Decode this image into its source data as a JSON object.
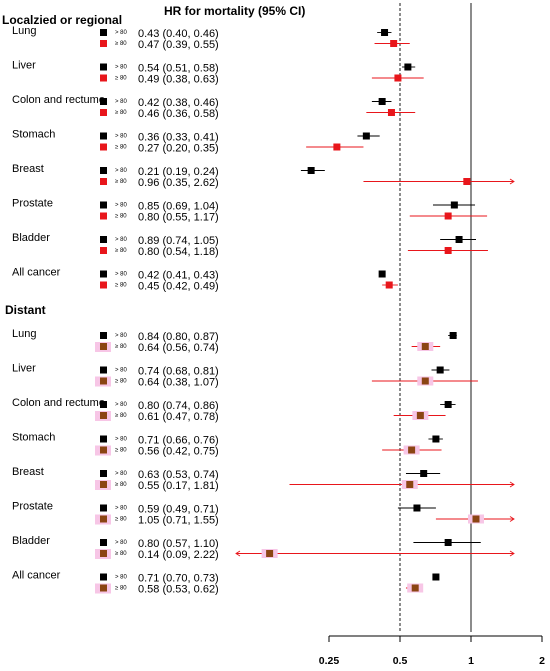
{
  "chart_data": {
    "type": "forest",
    "title": "HR for mortality (95% CI)",
    "xscale": "log2",
    "xlim": [
      0.125,
      2
    ],
    "xticks": [
      0.25,
      0.5,
      1,
      2
    ],
    "xtick_labels": [
      "0.25",
      "0.5",
      "1",
      "2"
    ],
    "reference_lines": [
      {
        "x": 0.5,
        "style": "dashed"
      },
      {
        "x": 1,
        "style": "solid"
      }
    ],
    "groups": [
      {
        "title": "Localzied or regional",
        "rows": [
          {
            "label": "Lung",
            "items": [
              {
                "age": "> 80",
                "text": "0.43 (0.40, 0.46)",
                "hr": 0.43,
                "lo": 0.4,
                "hi": 0.46,
                "color": "#000000"
              },
              {
                "age": "≥ 80",
                "text": "0.47 (0.39, 0.55)",
                "hr": 0.47,
                "lo": 0.39,
                "hi": 0.55,
                "color": "#e8161b"
              }
            ]
          },
          {
            "label": "Liver",
            "items": [
              {
                "age": "> 80",
                "text": "0.54 (0.51, 0.58)",
                "hr": 0.54,
                "lo": 0.51,
                "hi": 0.58,
                "color": "#000000"
              },
              {
                "age": "≥ 80",
                "text": "0.49 (0.38, 0.63)",
                "hr": 0.49,
                "lo": 0.38,
                "hi": 0.63,
                "color": "#e8161b"
              }
            ]
          },
          {
            "label": "Colon and rectume",
            "items": [
              {
                "age": "> 80",
                "text": "0.42 (0.38, 0.46)",
                "hr": 0.42,
                "lo": 0.38,
                "hi": 0.46,
                "color": "#000000"
              },
              {
                "age": "≥ 80",
                "text": "0.46 (0.36, 0.58)",
                "hr": 0.46,
                "lo": 0.36,
                "hi": 0.58,
                "color": "#e8161b"
              }
            ]
          },
          {
            "label": "Stomach",
            "items": [
              {
                "age": "> 80",
                "text": "0.36 (0.33, 0.41)",
                "hr": 0.36,
                "lo": 0.33,
                "hi": 0.41,
                "color": "#000000"
              },
              {
                "age": "≥ 80",
                "text": "0.27 (0.20, 0.35)",
                "hr": 0.27,
                "lo": 0.2,
                "hi": 0.35,
                "color": "#e8161b"
              }
            ]
          },
          {
            "label": "Breast",
            "items": [
              {
                "age": "> 80",
                "text": "0.21 (0.19, 0.24)",
                "hr": 0.21,
                "lo": 0.19,
                "hi": 0.24,
                "color": "#000000"
              },
              {
                "age": "≥ 80",
                "text": "0.96 (0.35, 2.62)",
                "hr": 0.96,
                "lo": 0.35,
                "hi": 2.62,
                "color": "#e8161b"
              }
            ]
          },
          {
            "label": "Prostate",
            "items": [
              {
                "age": "> 80",
                "text": "0.85 (0.69, 1.04)",
                "hr": 0.85,
                "lo": 0.69,
                "hi": 1.04,
                "color": "#000000"
              },
              {
                "age": "≥ 80",
                "text": "0.80 (0.55, 1.17)",
                "hr": 0.8,
                "lo": 0.55,
                "hi": 1.17,
                "color": "#e8161b"
              }
            ]
          },
          {
            "label": "Bladder",
            "items": [
              {
                "age": "> 80",
                "text": "0.89 (0.74, 1.05)",
                "hr": 0.89,
                "lo": 0.74,
                "hi": 1.05,
                "color": "#000000"
              },
              {
                "age": "≥ 80",
                "text": "0.80 (0.54, 1.18)",
                "hr": 0.8,
                "lo": 0.54,
                "hi": 1.18,
                "color": "#e8161b"
              }
            ]
          },
          {
            "label": "All cancer",
            "items": [
              {
                "age": "> 80",
                "text": "0.42 (0.41, 0.43)",
                "hr": 0.42,
                "lo": 0.41,
                "hi": 0.43,
                "color": "#000000"
              },
              {
                "age": "≥ 80",
                "text": "0.45 (0.42, 0.49)",
                "hr": 0.45,
                "lo": 0.42,
                "hi": 0.49,
                "color": "#e8161b"
              }
            ]
          }
        ]
      },
      {
        "title": "Distant",
        "rows": [
          {
            "label": "Lung",
            "items": [
              {
                "age": "> 80",
                "text": "0.84 (0.80, 0.87)",
                "hr": 0.84,
                "lo": 0.8,
                "hi": 0.87,
                "color": "#000000"
              },
              {
                "age": "≥ 80",
                "text": "0.64 (0.56, 0.74)",
                "hr": 0.64,
                "lo": 0.56,
                "hi": 0.74,
                "color": "#8b4513"
              }
            ]
          },
          {
            "label": "Liver",
            "items": [
              {
                "age": "> 80",
                "text": "0.74 (0.68, 0.81)",
                "hr": 0.74,
                "lo": 0.68,
                "hi": 0.81,
                "color": "#000000"
              },
              {
                "age": "≥ 80",
                "text": "0.64 (0.38, 1.07)",
                "hr": 0.64,
                "lo": 0.38,
                "hi": 1.07,
                "color": "#8b4513"
              }
            ]
          },
          {
            "label": "Colon and rectume",
            "items": [
              {
                "age": "> 80",
                "text": "0.80 (0.74, 0.86)",
                "hr": 0.8,
                "lo": 0.74,
                "hi": 0.86,
                "color": "#000000"
              },
              {
                "age": "≥ 80",
                "text": "0.61 (0.47, 0.78)",
                "hr": 0.61,
                "lo": 0.47,
                "hi": 0.78,
                "color": "#8b4513"
              }
            ]
          },
          {
            "label": "Stomach",
            "items": [
              {
                "age": "> 80",
                "text": "0.71 (0.66, 0.76)",
                "hr": 0.71,
                "lo": 0.66,
                "hi": 0.76,
                "color": "#000000"
              },
              {
                "age": "≥ 80",
                "text": "0.56 (0.42, 0.75)",
                "hr": 0.56,
                "lo": 0.42,
                "hi": 0.75,
                "color": "#8b4513"
              }
            ]
          },
          {
            "label": "Breast",
            "items": [
              {
                "age": "> 80",
                "text": "0.63 (0.53, 0.74)",
                "hr": 0.63,
                "lo": 0.53,
                "hi": 0.74,
                "color": "#000000"
              },
              {
                "age": "≥ 80",
                "text": "0.55 (0.17, 1.81)",
                "hr": 0.55,
                "lo": 0.17,
                "hi": 1.81,
                "color": "#8b4513"
              }
            ]
          },
          {
            "label": "Prostate",
            "items": [
              {
                "age": "> 80",
                "text": "0.59 (0.49, 0.71)",
                "hr": 0.59,
                "lo": 0.49,
                "hi": 0.71,
                "color": "#000000"
              },
              {
                "age": "≥ 80",
                "text": "1.05 (0.71, 1.55)",
                "hr": 1.05,
                "lo": 0.71,
                "hi": 1.55,
                "color": "#8b4513"
              }
            ]
          },
          {
            "label": "Bladder",
            "items": [
              {
                "age": "> 80",
                "text": "0.80 (0.57, 1.10)",
                "hr": 0.8,
                "lo": 0.57,
                "hi": 1.1,
                "color": "#000000"
              },
              {
                "age": "≥ 80",
                "text": "0.14 (0.09, 2.22)",
                "hr": 0.14,
                "lo": 0.09,
                "hi": 2.22,
                "color": "#8b4513"
              }
            ]
          },
          {
            "label": "All cancer",
            "items": [
              {
                "age": "> 80",
                "text": "0.71 (0.70, 0.73)",
                "hr": 0.71,
                "lo": 0.7,
                "hi": 0.73,
                "color": "#000000"
              },
              {
                "age": "≥ 80",
                "text": "0.58 (0.53, 0.62)",
                "hr": 0.58,
                "lo": 0.53,
                "hi": 0.62,
                "color": "#8b4513"
              }
            ]
          }
        ]
      }
    ],
    "colors": {
      "localized_young": "#000000",
      "localized_old": "#e8161b",
      "distant_old": "#8b4513",
      "ci_line_distant": "#e8161b",
      "highlight": "#f7c6e6"
    }
  }
}
